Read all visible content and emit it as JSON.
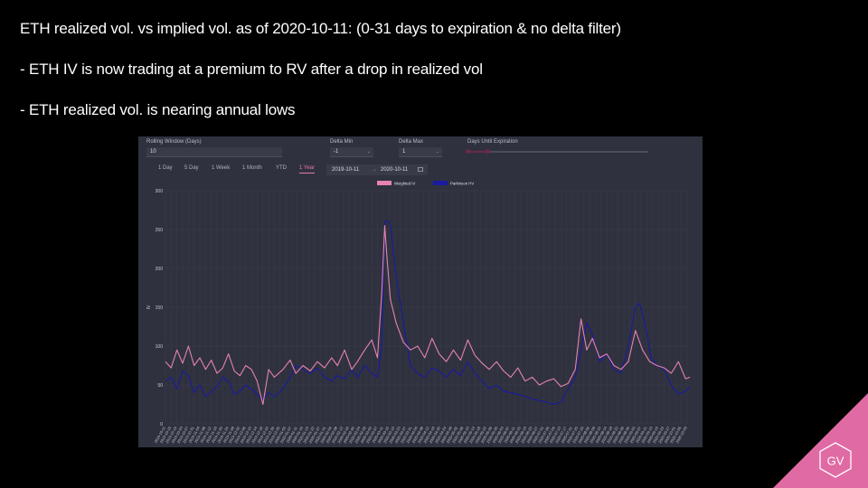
{
  "slide": {
    "title": "ETH realized vol. vs implied vol. as of 2020-10-11: (0-31 days to expiration & no delta filter)",
    "bullet1": "- ETH IV is now trading at a premium to RV after a drop in realized vol",
    "bullet2": "- ETH realized vol. is nearing annual lows",
    "logo_text": "GV"
  },
  "controls": {
    "rolling_window_label": "Rolling Window (Days)",
    "rolling_window_value": "10",
    "delta_min_label": "Delta Min",
    "delta_min_value": "-1",
    "delta_max_label": "Delta Max",
    "delta_max_value": "1",
    "days_until_expiration_label": "Days Until Expiration",
    "range_buttons": [
      "1 Day",
      "5 Day",
      "1 Week",
      "1 Month",
      "YTD",
      "1 Year"
    ],
    "active_range": "1 Year",
    "date_start": "2019-10-11",
    "date_sep": "→",
    "date_end": "2020-10-11",
    "calendar_icon": "calendar-icon"
  },
  "colors": {
    "weighted_iv": "#e682b4",
    "parkinson_hv": "#1a1aa0",
    "panel_bg": "#2f323e",
    "accent": "#e06aa3"
  },
  "chart_data": {
    "type": "line",
    "ylabel": "IV",
    "ylim": [
      0,
      300
    ],
    "yticks": [
      0,
      50,
      100,
      150,
      200,
      250,
      300
    ],
    "xlim": [
      "2019-10-11",
      "2020-10-11"
    ],
    "x_tick_step_days": 4,
    "legend": "top-center",
    "series": [
      {
        "name": "Weighted IV",
        "points": [
          [
            "2019-10-11",
            80
          ],
          [
            "2019-10-15",
            72
          ],
          [
            "2019-10-19",
            95
          ],
          [
            "2019-10-23",
            78
          ],
          [
            "2019-10-27",
            100
          ],
          [
            "2019-10-31",
            75
          ],
          [
            "2019-11-04",
            85
          ],
          [
            "2019-11-08",
            70
          ],
          [
            "2019-11-12",
            82
          ],
          [
            "2019-11-16",
            65
          ],
          [
            "2019-11-20",
            72
          ],
          [
            "2019-11-24",
            90
          ],
          [
            "2019-11-28",
            68
          ],
          [
            "2019-12-02",
            62
          ],
          [
            "2019-12-06",
            75
          ],
          [
            "2019-12-10",
            70
          ],
          [
            "2019-12-14",
            55
          ],
          [
            "2019-12-18",
            25
          ],
          [
            "2019-12-22",
            70
          ],
          [
            "2019-12-26",
            60
          ],
          [
            "2020-01-01",
            70
          ],
          [
            "2020-01-06",
            82
          ],
          [
            "2020-01-10",
            65
          ],
          [
            "2020-01-15",
            75
          ],
          [
            "2020-01-20",
            68
          ],
          [
            "2020-01-25",
            80
          ],
          [
            "2020-01-30",
            72
          ],
          [
            "2020-02-04",
            85
          ],
          [
            "2020-02-08",
            75
          ],
          [
            "2020-02-13",
            95
          ],
          [
            "2020-02-18",
            70
          ],
          [
            "2020-02-22",
            80
          ],
          [
            "2020-02-27",
            95
          ],
          [
            "2020-03-03",
            108
          ],
          [
            "2020-03-07",
            85
          ],
          [
            "2020-03-10",
            170
          ],
          [
            "2020-03-12",
            255
          ],
          [
            "2020-03-14",
            205
          ],
          [
            "2020-03-16",
            160
          ],
          [
            "2020-03-20",
            130
          ],
          [
            "2020-03-25",
            105
          ],
          [
            "2020-03-30",
            95
          ],
          [
            "2020-04-04",
            100
          ],
          [
            "2020-04-09",
            85
          ],
          [
            "2020-04-14",
            110
          ],
          [
            "2020-04-19",
            90
          ],
          [
            "2020-04-24",
            80
          ],
          [
            "2020-04-29",
            95
          ],
          [
            "2020-05-04",
            82
          ],
          [
            "2020-05-09",
            108
          ],
          [
            "2020-05-14",
            88
          ],
          [
            "2020-05-19",
            78
          ],
          [
            "2020-05-24",
            70
          ],
          [
            "2020-05-29",
            80
          ],
          [
            "2020-06-03",
            68
          ],
          [
            "2020-06-08",
            60
          ],
          [
            "2020-06-13",
            72
          ],
          [
            "2020-06-18",
            55
          ],
          [
            "2020-06-23",
            60
          ],
          [
            "2020-06-28",
            50
          ],
          [
            "2020-07-03",
            55
          ],
          [
            "2020-07-08",
            58
          ],
          [
            "2020-07-13",
            48
          ],
          [
            "2020-07-18",
            52
          ],
          [
            "2020-07-23",
            70
          ],
          [
            "2020-07-27",
            135
          ],
          [
            "2020-07-31",
            95
          ],
          [
            "2020-08-04",
            110
          ],
          [
            "2020-08-09",
            85
          ],
          [
            "2020-08-14",
            90
          ],
          [
            "2020-08-19",
            75
          ],
          [
            "2020-08-24",
            70
          ],
          [
            "2020-08-29",
            80
          ],
          [
            "2020-09-03",
            120
          ],
          [
            "2020-09-08",
            95
          ],
          [
            "2020-09-13",
            80
          ],
          [
            "2020-09-18",
            75
          ],
          [
            "2020-09-23",
            72
          ],
          [
            "2020-09-28",
            65
          ],
          [
            "2020-10-03",
            80
          ],
          [
            "2020-10-08",
            58
          ],
          [
            "2020-10-11",
            60
          ]
        ]
      },
      {
        "name": "Parkinson HV",
        "points": [
          [
            "2019-10-11",
            55
          ],
          [
            "2019-10-15",
            60
          ],
          [
            "2019-10-19",
            45
          ],
          [
            "2019-10-23",
            68
          ],
          [
            "2019-10-27",
            62
          ],
          [
            "2019-10-31",
            40
          ],
          [
            "2019-11-04",
            50
          ],
          [
            "2019-11-08",
            35
          ],
          [
            "2019-11-12",
            42
          ],
          [
            "2019-11-16",
            48
          ],
          [
            "2019-11-20",
            60
          ],
          [
            "2019-11-24",
            55
          ],
          [
            "2019-11-28",
            38
          ],
          [
            "2019-12-02",
            42
          ],
          [
            "2019-12-06",
            50
          ],
          [
            "2019-12-10",
            45
          ],
          [
            "2019-12-14",
            38
          ],
          [
            "2019-12-18",
            30
          ],
          [
            "2019-12-22",
            40
          ],
          [
            "2019-12-26",
            35
          ],
          [
            "2020-01-01",
            45
          ],
          [
            "2020-01-06",
            60
          ],
          [
            "2020-01-10",
            75
          ],
          [
            "2020-01-15",
            70
          ],
          [
            "2020-01-20",
            65
          ],
          [
            "2020-01-25",
            72
          ],
          [
            "2020-01-30",
            60
          ],
          [
            "2020-02-04",
            55
          ],
          [
            "2020-02-08",
            62
          ],
          [
            "2020-02-13",
            58
          ],
          [
            "2020-02-18",
            70
          ],
          [
            "2020-02-22",
            60
          ],
          [
            "2020-02-27",
            75
          ],
          [
            "2020-03-03",
            65
          ],
          [
            "2020-03-07",
            60
          ],
          [
            "2020-03-10",
            100
          ],
          [
            "2020-03-12",
            260
          ],
          [
            "2020-03-14",
            262
          ],
          [
            "2020-03-16",
            255
          ],
          [
            "2020-03-20",
            190
          ],
          [
            "2020-03-25",
            130
          ],
          [
            "2020-03-30",
            75
          ],
          [
            "2020-04-04",
            65
          ],
          [
            "2020-04-09",
            60
          ],
          [
            "2020-04-14",
            72
          ],
          [
            "2020-04-19",
            68
          ],
          [
            "2020-04-24",
            60
          ],
          [
            "2020-04-29",
            70
          ],
          [
            "2020-05-04",
            62
          ],
          [
            "2020-05-09",
            80
          ],
          [
            "2020-05-14",
            65
          ],
          [
            "2020-05-19",
            55
          ],
          [
            "2020-05-24",
            45
          ],
          [
            "2020-05-29",
            50
          ],
          [
            "2020-06-03",
            42
          ],
          [
            "2020-06-08",
            40
          ],
          [
            "2020-06-13",
            38
          ],
          [
            "2020-06-18",
            35
          ],
          [
            "2020-06-23",
            32
          ],
          [
            "2020-06-28",
            30
          ],
          [
            "2020-07-03",
            28
          ],
          [
            "2020-07-08",
            25
          ],
          [
            "2020-07-13",
            28
          ],
          [
            "2020-07-18",
            45
          ],
          [
            "2020-07-23",
            60
          ],
          [
            "2020-07-27",
            95
          ],
          [
            "2020-07-31",
            130
          ],
          [
            "2020-08-04",
            115
          ],
          [
            "2020-08-09",
            80
          ],
          [
            "2020-08-14",
            90
          ],
          [
            "2020-08-19",
            70
          ],
          [
            "2020-08-24",
            65
          ],
          [
            "2020-08-29",
            100
          ],
          [
            "2020-09-03",
            150
          ],
          [
            "2020-09-06",
            155
          ],
          [
            "2020-09-10",
            125
          ],
          [
            "2020-09-14",
            85
          ],
          [
            "2020-09-18",
            75
          ],
          [
            "2020-09-23",
            70
          ],
          [
            "2020-09-28",
            50
          ],
          [
            "2020-10-03",
            38
          ],
          [
            "2020-10-08",
            42
          ],
          [
            "2020-10-11",
            48
          ]
        ]
      }
    ]
  }
}
